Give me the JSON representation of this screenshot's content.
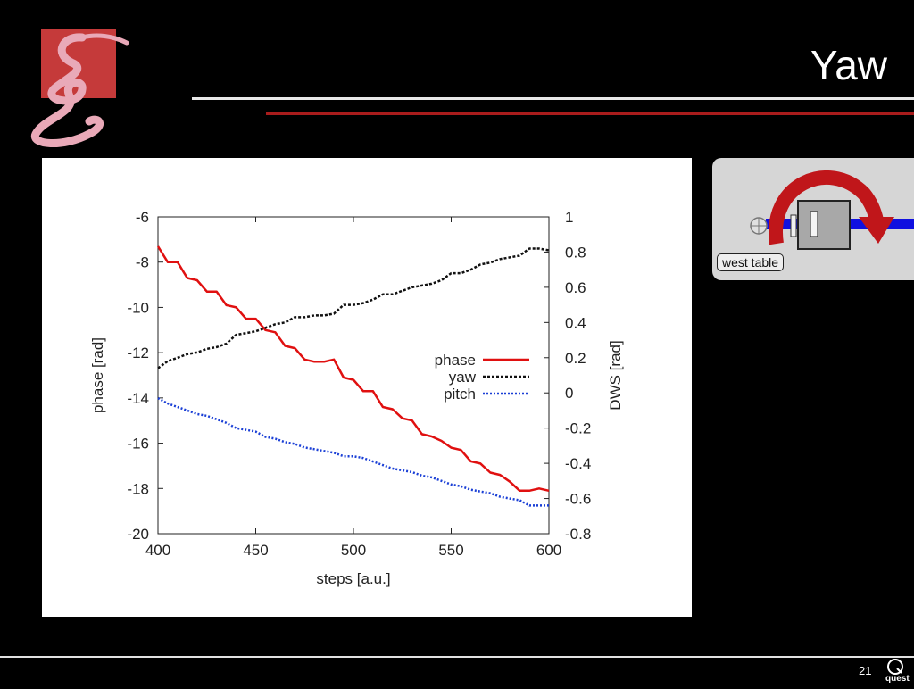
{
  "slide": {
    "title": "Yaw",
    "page_number": "21",
    "footer_logo_text": "quest"
  },
  "inset": {
    "label": "west table"
  },
  "colors": {
    "background": "#000000",
    "accent_red": "#a81c1c",
    "phase": "#e01010",
    "yaw": "#111111",
    "pitch": "#1a3fd6",
    "arrow": "#c0161a",
    "beam": "#1010e0"
  },
  "icons": [
    "swirl-logo-icon",
    "quest-logo-icon",
    "rotation-arrow-icon"
  ],
  "chart_data": {
    "type": "line",
    "xlabel": "steps [a.u.]",
    "ylabel_left": "phase [rad]",
    "ylabel_right": "DWS [rad]",
    "xlim": [
      400,
      600
    ],
    "ylim_left": [
      -20,
      -6
    ],
    "ylim_right": [
      -0.8,
      1
    ],
    "x_ticks": [
      "400",
      "450",
      "500",
      "550",
      "600"
    ],
    "y_ticks_left": [
      "-6",
      "-8",
      "-10",
      "-12",
      "-14",
      "-16",
      "-18",
      "-20"
    ],
    "y_ticks_right": [
      "1",
      "0.8",
      "0.6",
      "0.4",
      "0.2",
      "0",
      "-0.2",
      "-0.4",
      "-0.6",
      "-0.8"
    ],
    "grid": false,
    "legend_position": "center-right",
    "x": [
      400,
      405,
      410,
      415,
      420,
      425,
      430,
      435,
      440,
      445,
      450,
      455,
      460,
      465,
      470,
      475,
      480,
      485,
      490,
      495,
      500,
      505,
      510,
      515,
      520,
      525,
      530,
      535,
      540,
      545,
      550,
      555,
      560,
      565,
      570,
      575,
      580,
      585,
      590,
      595,
      600
    ],
    "series": [
      {
        "name": "phase",
        "axis": "left",
        "values": [
          -7.3,
          -8.0,
          -8.0,
          -8.7,
          -8.8,
          -9.3,
          -9.3,
          -9.9,
          -10.0,
          -10.5,
          -10.5,
          -11.0,
          -11.1,
          -11.7,
          -11.8,
          -12.3,
          -12.4,
          -12.4,
          -12.3,
          -13.1,
          -13.2,
          -13.7,
          -13.7,
          -14.4,
          -14.5,
          -14.9,
          -15.0,
          -15.6,
          -15.7,
          -15.9,
          -16.2,
          -16.3,
          -16.8,
          -16.9,
          -17.3,
          -17.4,
          -17.7,
          -18.1,
          -18.1,
          -18.0,
          -18.1
        ]
      },
      {
        "name": "yaw",
        "axis": "right",
        "values": [
          0.14,
          0.18,
          0.2,
          0.22,
          0.23,
          0.25,
          0.26,
          0.28,
          0.33,
          0.34,
          0.35,
          0.37,
          0.39,
          0.4,
          0.43,
          0.43,
          0.44,
          0.44,
          0.45,
          0.5,
          0.5,
          0.51,
          0.53,
          0.56,
          0.56,
          0.58,
          0.6,
          0.61,
          0.62,
          0.64,
          0.68,
          0.68,
          0.7,
          0.73,
          0.74,
          0.76,
          0.77,
          0.78,
          0.82,
          0.82,
          0.81
        ]
      },
      {
        "name": "pitch",
        "axis": "right",
        "values": [
          -0.03,
          -0.06,
          -0.08,
          -0.1,
          -0.12,
          -0.13,
          -0.15,
          -0.17,
          -0.2,
          -0.21,
          -0.22,
          -0.25,
          -0.26,
          -0.28,
          -0.29,
          -0.31,
          -0.32,
          -0.33,
          -0.34,
          -0.36,
          -0.36,
          -0.37,
          -0.39,
          -0.41,
          -0.43,
          -0.44,
          -0.45,
          -0.47,
          -0.48,
          -0.5,
          -0.52,
          -0.53,
          -0.55,
          -0.56,
          -0.57,
          -0.59,
          -0.6,
          -0.61,
          -0.64,
          -0.64,
          -0.64
        ]
      }
    ]
  }
}
